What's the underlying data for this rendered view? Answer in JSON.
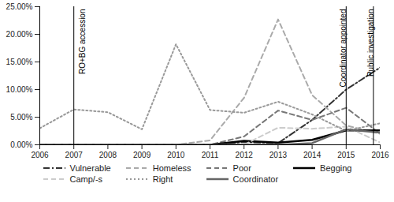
{
  "chart_data": {
    "type": "line",
    "x": [
      2006,
      2007,
      2008,
      2009,
      2010,
      2011,
      2012,
      2013,
      2014,
      2015,
      2016
    ],
    "xlim": [
      2006,
      2016
    ],
    "xticks": [
      2006,
      2007,
      2008,
      2009,
      2010,
      2011,
      2012,
      2013,
      2014,
      2015,
      2016
    ],
    "ylim": [
      0,
      25
    ],
    "yticks": [
      {
        "value": 0,
        "label": "0.00%"
      },
      {
        "value": 5,
        "label": "5.00%"
      },
      {
        "value": 10,
        "label": "10.00%"
      },
      {
        "value": 15,
        "label": "15.00%"
      },
      {
        "value": 20,
        "label": "20.00%"
      },
      {
        "value": 25,
        "label": "25.00%"
      }
    ],
    "grid": false,
    "legend": "bottom",
    "annotations": [
      {
        "x": 2007,
        "text": "RO+BG accession"
      },
      {
        "x": 2015,
        "text": "Coordinator appointed"
      },
      {
        "x": 2015.8,
        "text": "Public investigation"
      }
    ],
    "series": [
      {
        "name": "Vulnerable",
        "color": "#333333",
        "line_style": "dashdot",
        "values": [
          0,
          0,
          0,
          0,
          0,
          0,
          0.5,
          0.3,
          4.5,
          10,
          14
        ]
      },
      {
        "name": "Homeless",
        "color": "#aaaaaa",
        "line_style": "dashed",
        "values": [
          0,
          0,
          0,
          0,
          0,
          0.8,
          8.5,
          22.7,
          9,
          3.5,
          2
        ]
      },
      {
        "name": "Poor",
        "color": "#777777",
        "line_style": "dashed",
        "values": [
          0,
          0,
          0,
          0,
          0,
          0,
          1.5,
          6.2,
          4.5,
          6.7,
          2
        ]
      },
      {
        "name": "Begging",
        "color": "#000000",
        "line_style": "solid",
        "values": [
          0,
          0,
          0,
          0,
          0,
          0,
          0.7,
          0.4,
          0.9,
          2.6,
          2.6
        ]
      },
      {
        "name": "Camp/-s",
        "color": "#cccccc",
        "line_style": "dashed",
        "values": [
          0,
          0,
          0,
          0,
          0,
          0,
          0,
          3.1,
          2.9,
          3.3,
          0.4
        ]
      },
      {
        "name": "Right",
        "color": "#999999",
        "line_style": "dotted",
        "values": [
          3,
          6.4,
          5.9,
          2.8,
          18.2,
          6.3,
          5.8,
          7.8,
          5.5,
          2.5,
          3.9
        ]
      },
      {
        "name": "Coordinator",
        "color": "#666666",
        "line_style": "solid",
        "values": [
          0,
          0,
          0,
          0,
          0,
          0,
          0,
          0,
          0.3,
          2.8,
          2.2
        ]
      }
    ]
  }
}
